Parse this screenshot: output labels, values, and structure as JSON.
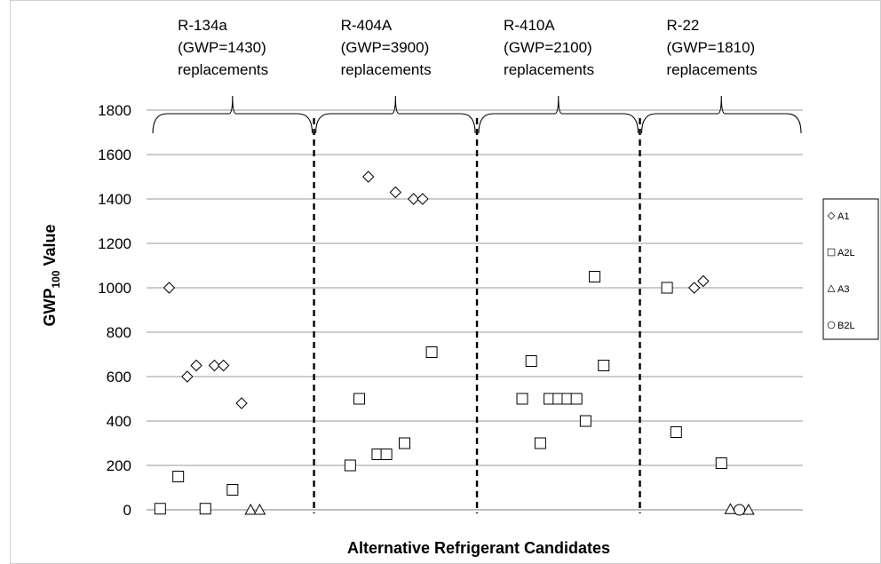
{
  "chart_data": {
    "type": "scatter",
    "ylabel_main": "GWP",
    "ylabel_sub": "100",
    "ylabel_rest": " Value",
    "xlabel": "Alternative Refrigerant Candidates",
    "ylim": [
      0,
      1800
    ],
    "yticks": [
      0,
      200,
      400,
      600,
      800,
      1000,
      1200,
      1400,
      1600,
      1800
    ],
    "grid": true,
    "legend_position": "right",
    "groups": [
      {
        "lines": [
          "R-134a",
          "(GWP=1430)",
          "replacements"
        ],
        "range": [
          0,
          18
        ]
      },
      {
        "lines": [
          "R-404A",
          "(GWP=3900)",
          "replacements"
        ],
        "range": [
          18,
          36
        ]
      },
      {
        "lines": [
          "R-410A",
          "(GWP=2100)",
          "replacements"
        ],
        "range": [
          36,
          54
        ]
      },
      {
        "lines": [
          "R-22",
          "(GWP=1810)",
          "replacements"
        ],
        "range": [
          54,
          72
        ]
      }
    ],
    "series": [
      {
        "name": "A1",
        "marker": "diamond",
        "points": [
          {
            "x": 2,
            "y": 1000
          },
          {
            "x": 4,
            "y": 600
          },
          {
            "x": 5,
            "y": 650
          },
          {
            "x": 7,
            "y": 650
          },
          {
            "x": 8,
            "y": 650
          },
          {
            "x": 10,
            "y": 480
          },
          {
            "x": 24,
            "y": 1500
          },
          {
            "x": 27,
            "y": 1430
          },
          {
            "x": 29,
            "y": 1400
          },
          {
            "x": 30,
            "y": 1400
          },
          {
            "x": 60,
            "y": 1000
          },
          {
            "x": 61,
            "y": 1030
          }
        ]
      },
      {
        "name": "A2L",
        "marker": "square",
        "points": [
          {
            "x": 1,
            "y": 5
          },
          {
            "x": 3,
            "y": 150
          },
          {
            "x": 6,
            "y": 5
          },
          {
            "x": 9,
            "y": 90
          },
          {
            "x": 22,
            "y": 200
          },
          {
            "x": 23,
            "y": 500
          },
          {
            "x": 25,
            "y": 250
          },
          {
            "x": 26,
            "y": 250
          },
          {
            "x": 28,
            "y": 300
          },
          {
            "x": 31,
            "y": 710
          },
          {
            "x": 41,
            "y": 500
          },
          {
            "x": 42,
            "y": 670
          },
          {
            "x": 43,
            "y": 300
          },
          {
            "x": 44,
            "y": 500
          },
          {
            "x": 45,
            "y": 500
          },
          {
            "x": 46,
            "y": 500
          },
          {
            "x": 47,
            "y": 500
          },
          {
            "x": 48,
            "y": 400
          },
          {
            "x": 49,
            "y": 1050
          },
          {
            "x": 50,
            "y": 650
          },
          {
            "x": 57,
            "y": 1000
          },
          {
            "x": 58,
            "y": 350
          },
          {
            "x": 63,
            "y": 210
          }
        ]
      },
      {
        "name": "A3",
        "marker": "triangle",
        "points": [
          {
            "x": 11,
            "y": 0
          },
          {
            "x": 12,
            "y": 0
          },
          {
            "x": 64,
            "y": 3
          },
          {
            "x": 66,
            "y": 0
          }
        ]
      },
      {
        "name": "B2L",
        "marker": "circle",
        "points": [
          {
            "x": 65,
            "y": 0
          }
        ]
      }
    ]
  }
}
